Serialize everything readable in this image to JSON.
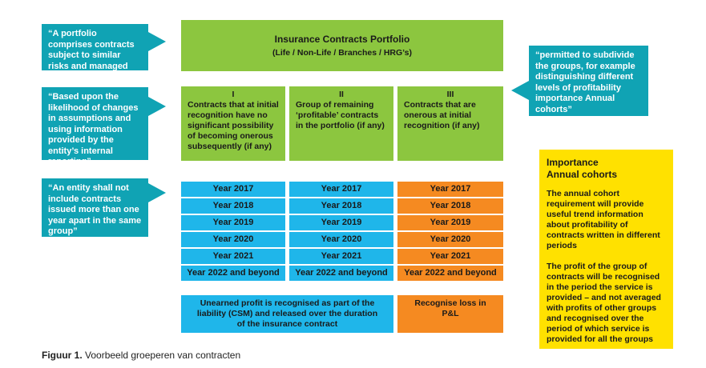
{
  "callouts": {
    "portfolio": "“A portfolio comprises contracts subject to similar risks and managed together”",
    "likelihood": "“Based upon the likelihood of changes in assumptions and using information provided by the entity’s internal reporting”",
    "entity": "“An entity shall not include contracts issued more than one year apart in the same group”",
    "permitted": "“permitted to subdivide the groups, for example distinguishing different levels of profitability importance Annual cohorts”"
  },
  "portfolio": {
    "title": "Insurance Contracts Portfolio",
    "subtitle": "(Life / Non-Life / Branches / HRG’s)"
  },
  "groups": [
    {
      "numeral": "I",
      "text": "Contracts that at initial recognition have no significant possibility of becoming onerous subsequently (if any)"
    },
    {
      "numeral": "II",
      "text": "Group of remaining ‘profitable’ contracts in the portfolio (if any)"
    },
    {
      "numeral": "III",
      "text": "Contracts that are onerous at initial recognition (if any)"
    }
  ],
  "years": [
    "Year 2017",
    "Year 2018",
    "Year 2019",
    "Year 2020",
    "Year 2021",
    "Year 2022 and beyond"
  ],
  "bottom": {
    "unearned": "Unearned profit is recognised as part of the liability (CSM) and released over the duration of the insurance contract",
    "loss": "Recognise loss in P&L"
  },
  "sidebar": {
    "title_line1": "Importance",
    "title_line2": "Annual cohorts",
    "para1": "The annual cohort requirement will provide useful trend information about profitability of contracts written in different periods",
    "para2": "The profit of the group of contracts will be recognised in the period the service is provided – and not averaged with profits of other groups and recognised over the period of which service is provided for all the groups"
  },
  "caption": {
    "label": "Figuur 1.",
    "text": " Voorbeeld groeperen van contracten"
  },
  "colors": {
    "teal": "#10a3b4",
    "green": "#8cc63f",
    "blue": "#1fb6ea",
    "orange": "#f58a21",
    "yellow": "#ffe100"
  }
}
